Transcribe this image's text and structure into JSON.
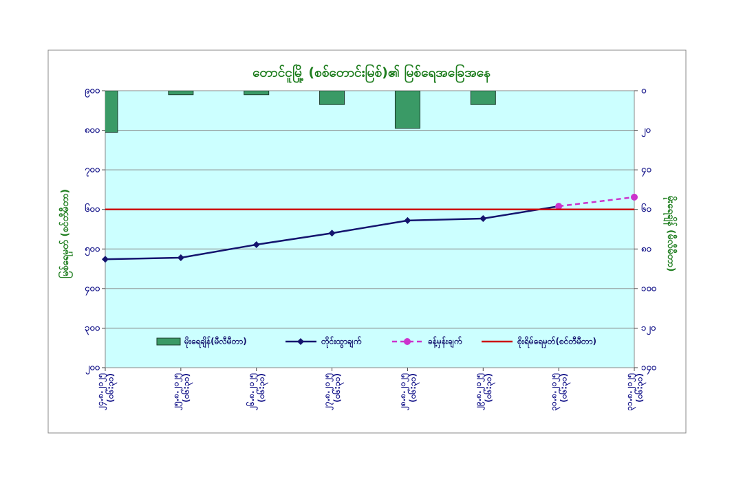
{
  "chart_data": {
    "type": "combo",
    "title": "တောင်ငူမြို့ (စစ်တောင်းမြစ်)၏ မြစ်ရေအခြေအနေ",
    "y_label": "မြစ်ရေမှတ် (စင်တီမီတာ)",
    "y2_label": "မိုးရေချိန် (မီလီမီတာ)",
    "categories": [
      "၂၄.၈.၂၀၂၅",
      "၂၅.၈.၂၀၂၅",
      "၂၆.၈.၂၀၂၅",
      "၂၇.၈.၂၀၂၅",
      "၂၈.၈.၂၀၂၅",
      "၂၉.၈.၂၀၂၅",
      "၃၀.၈.၂၀၂၅",
      "၃၁.၈.၂၀၂၅"
    ],
    "category_sublabels": [
      "(ဝ၆:၃၀)",
      "(ဝ၆:၃၀)",
      "(ဝ၆:၃၀)",
      "(ဝ၆:၃၀)",
      "(ဝ၆:၃၀)",
      "(ဝ၆:၃၀)",
      "(ဝ၆:၃၀)",
      "(ဝ၆:၃၀)"
    ],
    "ylim": [
      200,
      900
    ],
    "yticks": [
      {
        "value": 900,
        "label": "၉၀၀"
      },
      {
        "value": 800,
        "label": "၈၀၀"
      },
      {
        "value": 700,
        "label": "၇၀၀"
      },
      {
        "value": 600,
        "label": "၆၀၀"
      },
      {
        "value": 500,
        "label": "၅၀၀"
      },
      {
        "value": 400,
        "label": "၄၀၀"
      },
      {
        "value": 300,
        "label": "၃၀၀"
      },
      {
        "value": 200,
        "label": "၂၀၀"
      }
    ],
    "y2lim": [
      0,
      140
    ],
    "y2_reversed": true,
    "y2ticks": [
      {
        "value": 0,
        "label": "၀"
      },
      {
        "value": 20,
        "label": "၂၀"
      },
      {
        "value": 40,
        "label": "၄၀"
      },
      {
        "value": 60,
        "label": "၆၀"
      },
      {
        "value": 80,
        "label": "၈၀"
      },
      {
        "value": 100,
        "label": "၁၀၀"
      },
      {
        "value": 120,
        "label": "၁၂၀"
      },
      {
        "value": 140,
        "label": "၁၄၀"
      }
    ],
    "grid": true,
    "background": "#ccffff",
    "series": [
      {
        "name": "မိုးရေချိန်(မီလီမီတာ)",
        "kind": "bar",
        "axis": "y2",
        "color": "#3a9a66",
        "values": [
          21,
          2,
          2,
          7,
          19,
          7,
          null,
          null
        ]
      },
      {
        "name": "တိုင်းထွာချက်",
        "kind": "line",
        "color": "#14146e",
        "values": [
          474,
          478,
          511,
          540,
          572,
          577,
          608,
          null
        ]
      },
      {
        "name": "ခန့်မှန်းချက်",
        "kind": "dashed",
        "color": "#cc33cc",
        "values": [
          null,
          null,
          null,
          null,
          null,
          null,
          608,
          631
        ]
      },
      {
        "name": "စိုးရိမ်ရေမှတ်(စင်တီမီတာ)",
        "kind": "level",
        "color": "#cc0000",
        "values": [
          600,
          600,
          600,
          600,
          600,
          600,
          600,
          600
        ]
      }
    ]
  }
}
